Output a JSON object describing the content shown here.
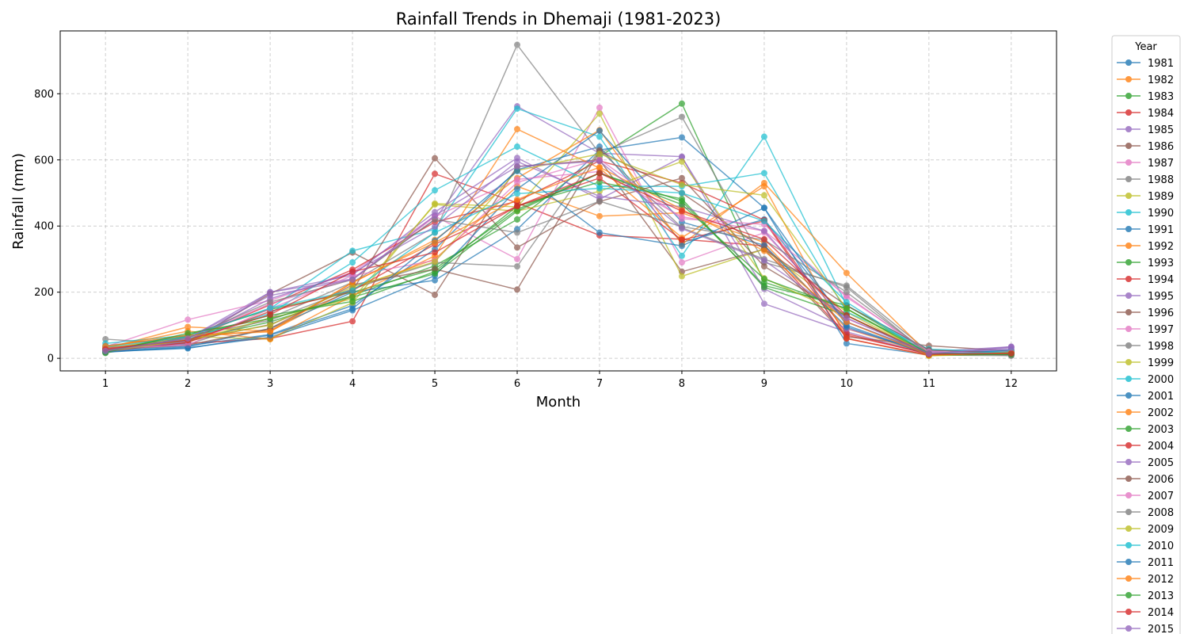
{
  "chart_data": {
    "type": "line",
    "title": "Rainfall Trends in Dhemaji (1981-2023)",
    "xlabel": "Month",
    "ylabel": "Rainfall (mm)",
    "x": [
      1,
      2,
      3,
      4,
      5,
      6,
      7,
      8,
      9,
      10,
      11,
      12
    ],
    "xlim": [
      0.45,
      12.55
    ],
    "ylim": [
      -38,
      990
    ],
    "yticks": [
      0,
      200,
      400,
      600,
      800
    ],
    "grid": true,
    "legend": {
      "title": "Year",
      "placement": "outside right"
    },
    "series": [
      {
        "name": "1981",
        "color": "#1f77b4",
        "values": [
          22,
          38,
          72,
          160,
          330,
          570,
          640,
          350,
          420,
          110,
          15,
          18
        ]
      },
      {
        "name": "1982",
        "color": "#ff7f0e",
        "values": [
          30,
          95,
          82,
          210,
          300,
          520,
          430,
          440,
          350,
          90,
          12,
          14
        ]
      },
      {
        "name": "1983",
        "color": "#2ca02c",
        "values": [
          18,
          55,
          110,
          190,
          280,
          420,
          610,
          770,
          230,
          150,
          10,
          12
        ]
      },
      {
        "name": "1984",
        "color": "#d62728",
        "values": [
          28,
          45,
          60,
          112,
          558,
          470,
          372,
          360,
          340,
          70,
          14,
          20
        ]
      },
      {
        "name": "1985",
        "color": "#9467bd",
        "values": [
          20,
          60,
          200,
          240,
          420,
          762,
          620,
          610,
          165,
          80,
          12,
          35
        ]
      },
      {
        "name": "1986",
        "color": "#8c564b",
        "values": [
          25,
          48,
          195,
          320,
          192,
          580,
          600,
          262,
          330,
          65,
          38,
          22
        ]
      },
      {
        "name": "1987",
        "color": "#e377c2",
        "values": [
          35,
          117,
          175,
          260,
          430,
          300,
          758,
          290,
          380,
          120,
          18,
          16
        ]
      },
      {
        "name": "1988",
        "color": "#7f7f7f",
        "values": [
          58,
          42,
          122,
          230,
          380,
          948,
          620,
          730,
          290,
          220,
          20,
          8
        ]
      },
      {
        "name": "1989",
        "color": "#bcbd22",
        "values": [
          30,
          66,
          58,
          168,
          468,
          458,
          740,
          248,
          330,
          140,
          8,
          12
        ]
      },
      {
        "name": "1990",
        "color": "#17becf",
        "values": [
          45,
          70,
          150,
          325,
          390,
          755,
          670,
          310,
          670,
          160,
          25,
          18
        ]
      },
      {
        "name": "1991",
        "color": "#1f77b4",
        "values": [
          18,
          35,
          90,
          200,
          236,
          390,
          630,
          668,
          455,
          45,
          10,
          14
        ]
      },
      {
        "name": "1992",
        "color": "#ff7f0e",
        "values": [
          26,
          66,
          84,
          228,
          358,
          545,
          690,
          345,
          530,
          258,
          12,
          16
        ]
      },
      {
        "name": "1993",
        "color": "#2ca02c",
        "values": [
          22,
          70,
          148,
          200,
          270,
          450,
          560,
          475,
          220,
          160,
          14,
          15
        ]
      },
      {
        "name": "1994",
        "color": "#d62728",
        "values": [
          30,
          55,
          162,
          268,
          412,
          475,
          597,
          530,
          418,
          75,
          12,
          18
        ]
      },
      {
        "name": "1995",
        "color": "#9467bd",
        "values": [
          24,
          45,
          200,
          252,
          442,
          606,
          481,
          608,
          210,
          90,
          20,
          35
        ]
      },
      {
        "name": "1996",
        "color": "#8c564b",
        "values": [
          28,
          52,
          102,
          205,
          605,
          335,
          474,
          545,
          278,
          130,
          10,
          18
        ]
      },
      {
        "name": "1997",
        "color": "#e377c2",
        "values": [
          22,
          60,
          165,
          240,
          428,
          541,
          565,
          428,
          385,
          190,
          12,
          22
        ]
      },
      {
        "name": "1998",
        "color": "#7f7f7f",
        "values": [
          38,
          66,
          115,
          210,
          290,
          278,
          630,
          395,
          300,
          215,
          10,
          8
        ]
      },
      {
        "name": "1999",
        "color": "#bcbd22",
        "values": [
          28,
          50,
          122,
          180,
          465,
          445,
          505,
          595,
          242,
          130,
          8,
          15
        ]
      },
      {
        "name": "2000",
        "color": "#17becf",
        "values": [
          26,
          58,
          136,
          290,
          508,
          640,
          520,
          520,
          560,
          140,
          28,
          18
        ]
      },
      {
        "name": "2001",
        "color": "#1f77b4",
        "values": [
          20,
          32,
          64,
          145,
          250,
          512,
          688,
          412,
          342,
          95,
          12,
          25
        ]
      },
      {
        "name": "2002",
        "color": "#ff7f0e",
        "values": [
          32,
          82,
          58,
          190,
          310,
          693,
          575,
          365,
          520,
          60,
          8,
          20
        ]
      },
      {
        "name": "2003",
        "color": "#2ca02c",
        "values": [
          16,
          65,
          130,
          172,
          262,
          460,
          533,
          482,
          215,
          130,
          10,
          12
        ]
      },
      {
        "name": "2004",
        "color": "#d62728",
        "values": [
          22,
          48,
          142,
          205,
          345,
          460,
          545,
          358,
          415,
          60,
          10,
          18
        ]
      },
      {
        "name": "2005",
        "color": "#9467bd",
        "values": [
          18,
          52,
          180,
          258,
          398,
          595,
          490,
          458,
          385,
          110,
          14,
          28
        ]
      },
      {
        "name": "2006",
        "color": "#8c564b",
        "values": [
          26,
          40,
          90,
          222,
          270,
          208,
          627,
          500,
          330,
          160,
          25,
          15
        ]
      },
      {
        "name": "2007",
        "color": "#e377c2",
        "values": [
          30,
          40,
          150,
          250,
          296,
          532,
          602,
          422,
          405,
          185,
          20,
          14
        ]
      },
      {
        "name": "2008",
        "color": "#7f7f7f",
        "values": [
          24,
          62,
          170,
          238,
          420,
          380,
          475,
          398,
          358,
          200,
          15,
          12
        ]
      },
      {
        "name": "2009",
        "color": "#bcbd22",
        "values": [
          20,
          57,
          100,
          216,
          292,
          568,
          618,
          525,
          493,
          150,
          8,
          18
        ]
      },
      {
        "name": "2010",
        "color": "#17becf",
        "values": [
          34,
          65,
          152,
          205,
          380,
          498,
          514,
          500,
          415,
          170,
          12,
          20
        ]
      },
      {
        "name": "2011",
        "color": "#1f77b4",
        "values": [
          20,
          30,
          70,
          150,
          355,
          566,
          380,
          340,
          455,
          100,
          12,
          14
        ]
      },
      {
        "name": "2012",
        "color": "#ff7f0e",
        "values": [
          36,
          70,
          80,
          230,
          350,
          480,
          578,
          450,
          325,
          110,
          10,
          16
        ]
      },
      {
        "name": "2013",
        "color": "#2ca02c",
        "values": [
          18,
          76,
          120,
          185,
          256,
          445,
          560,
          465,
          240,
          150,
          14,
          12
        ]
      },
      {
        "name": "2014",
        "color": "#d62728",
        "values": [
          28,
          55,
          132,
          262,
          320,
          460,
          560,
          445,
          360,
          130,
          12,
          15
        ]
      },
      {
        "name": "2015",
        "color": "#9467bd",
        "values": [
          22,
          60,
          190,
          238,
          432,
          580,
          596,
          392,
          296,
          122,
          14,
          32
        ]
      }
    ]
  }
}
